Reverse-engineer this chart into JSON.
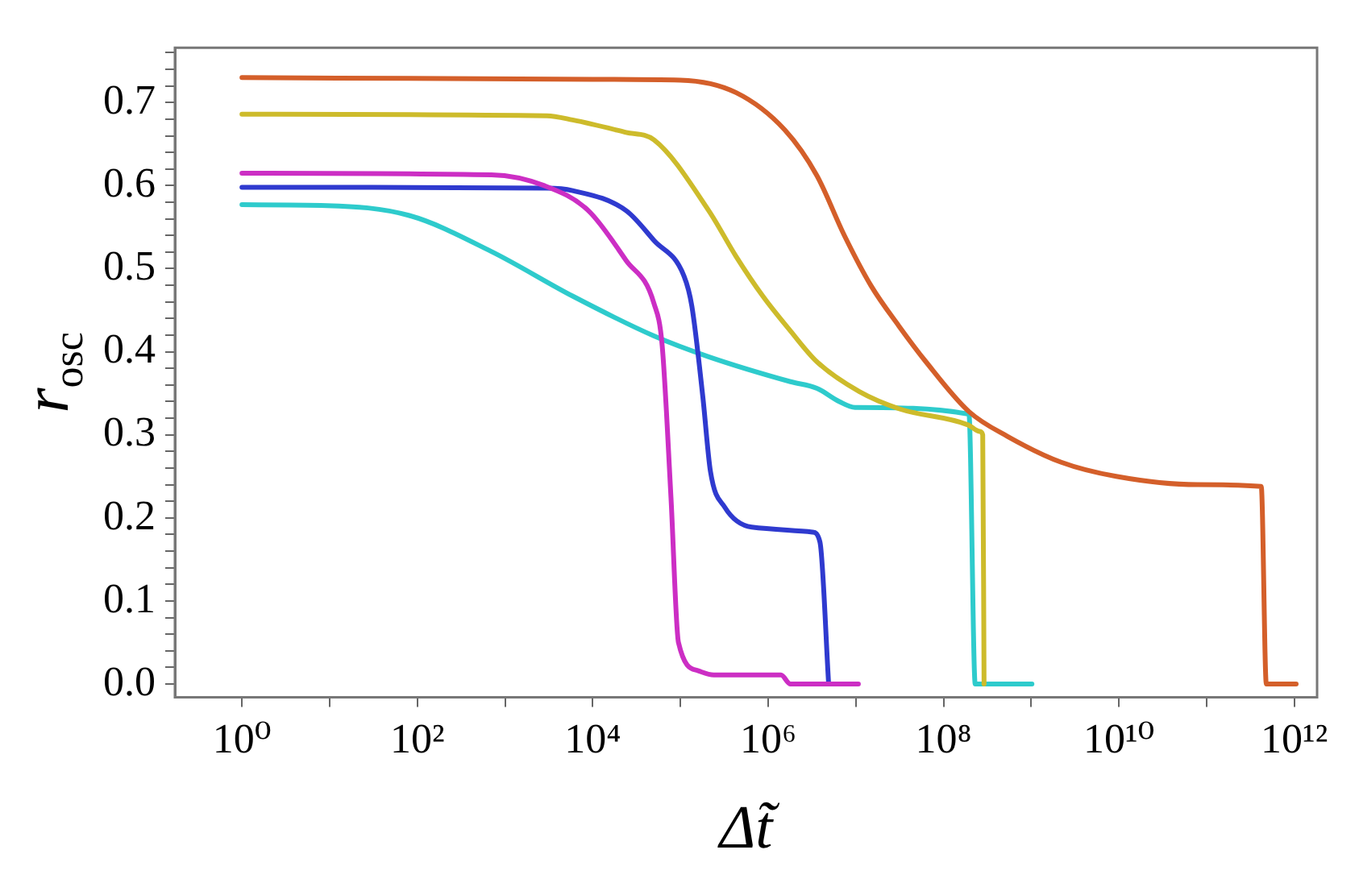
{
  "chart_data": {
    "type": "line",
    "xlabel": "Δt̃",
    "ylabel": "r$_{osc}$",
    "log": "x",
    "grid": false,
    "legend": false,
    "marker": "none",
    "line_style": "solid",
    "xlim": [
      0.172,
      1820000000000.0
    ],
    "ylim": [
      -0.016,
      0.766
    ],
    "xticks": [
      {
        "value": 1,
        "label": "10⁰"
      },
      {
        "value": 10,
        "label": null
      },
      {
        "value": 100,
        "label": "10²"
      },
      {
        "value": 1000,
        "label": null
      },
      {
        "value": 10000,
        "label": "10⁴"
      },
      {
        "value": 100000,
        "label": null
      },
      {
        "value": 1000000,
        "label": "10⁶"
      },
      {
        "value": 10000000,
        "label": null
      },
      {
        "value": 100000000,
        "label": "10⁸"
      },
      {
        "value": 1000000000,
        "label": null
      },
      {
        "value": 10000000000,
        "label": "10¹⁰"
      },
      {
        "value": 100000000000,
        "label": null
      },
      {
        "value": 1000000000000,
        "label": "10¹²"
      }
    ],
    "yticks": [
      {
        "value": 0,
        "label": "0.0"
      },
      {
        "value": 0.02,
        "label": null
      },
      {
        "value": 0.04,
        "label": null
      },
      {
        "value": 0.06,
        "label": null
      },
      {
        "value": 0.08,
        "label": null
      },
      0.1,
      {
        "value": 0.12,
        "label": null
      },
      {
        "value": 0.14,
        "label": null
      },
      {
        "value": 0.16,
        "label": null
      },
      {
        "value": 0.18,
        "label": null
      },
      0.2,
      {
        "value": 0.22,
        "label": null
      },
      {
        "value": 0.24,
        "label": null
      },
      {
        "value": 0.26,
        "label": null
      },
      {
        "value": 0.28,
        "label": null
      },
      0.3,
      {
        "value": 0.32,
        "label": null
      },
      {
        "value": 0.34,
        "label": null
      },
      {
        "value": 0.36,
        "label": null
      },
      {
        "value": 0.38,
        "label": null
      },
      0.4,
      {
        "value": 0.42,
        "label": null
      },
      {
        "value": 0.44,
        "label": null
      },
      {
        "value": 0.46,
        "label": null
      },
      {
        "value": 0.48,
        "label": null
      },
      0.5,
      {
        "value": 0.52,
        "label": null
      },
      {
        "value": 0.54,
        "label": null
      },
      {
        "value": 0.56,
        "label": null
      },
      {
        "value": 0.58,
        "label": null
      },
      0.6,
      {
        "value": 0.62,
        "label": null
      },
      {
        "value": 0.64,
        "label": null
      },
      {
        "value": 0.66,
        "label": null
      },
      {
        "value": 0.68,
        "label": null
      },
      0.7,
      {
        "value": 0.72,
        "label": null
      },
      {
        "value": 0.74,
        "label": null
      },
      {
        "value": 0.76,
        "label": null
      }
    ],
    "series": [
      {
        "color": "#d45f2a",
        "x": [
          1,
          10000.0,
          100000.0,
          430000.0,
          1550000.0,
          3600000.0,
          7400000.0,
          15000000.0,
          31000000.0,
          63000000.0,
          195000000.0,
          540000000.0,
          2200000000.0,
          9300000000.0,
          79000000000.0,
          420000000000.0,
          480000000000.0,
          1050000000000.0
        ],
        "values": [
          0.73,
          0.728,
          0.727,
          0.712,
          0.667,
          0.612,
          0.54,
          0.479,
          0.431,
          0.388,
          0.328,
          0.298,
          0.267,
          0.25,
          0.24,
          0.238,
          0,
          0
        ]
      },
      {
        "color": "#cdbb2b",
        "x": [
          1,
          3000,
          5900.0,
          24000.0,
          50000.0,
          210000.0,
          430000.0,
          870000.0,
          1800000.0,
          3600000.0,
          11000000.0,
          32000000.0,
          190000000.0,
          260000000.0,
          280000000.0,
          290000000.0
        ],
        "values": [
          0.686,
          0.684,
          0.679,
          0.664,
          0.655,
          0.57,
          0.515,
          0.467,
          0.425,
          0.388,
          0.352,
          0.331,
          0.312,
          0.304,
          0.3,
          0
        ]
      },
      {
        "color": "#cc2ec4",
        "x": [
          1,
          700,
          2800,
          8900,
          24000.0,
          50000.0,
          62000.0,
          78000.0,
          95000.0,
          160000.0,
          240000.0,
          1400000.0,
          1800000.0,
          10700000.0
        ],
        "values": [
          0.615,
          0.613,
          0.6,
          0.57,
          0.51,
          0.458,
          0.407,
          0.225,
          0.05,
          0.016,
          0.011,
          0.011,
          0,
          0
        ]
      },
      {
        "color": "#2f3acf",
        "x": [
          1,
          3000,
          5900.0,
          24000.0,
          50000.0,
          110000.0,
          135000.0,
          180000.0,
          220000.0,
          320000.0,
          650000.0,
          3200000.0,
          3900000.0,
          4900000.0
        ],
        "values": [
          0.598,
          0.597,
          0.594,
          0.57,
          0.534,
          0.491,
          0.455,
          0.346,
          0.256,
          0.213,
          0.189,
          0.183,
          0.171,
          0
        ]
      },
      {
        "color": "#2ecbcc",
        "x": [
          1,
          9.3,
          81,
          690,
          5900.0,
          50000.0,
          210000.0,
          1800000.0,
          3600000.0,
          6500000.0,
          9800000.0,
          195000000.0,
          230000000.0,
          1020000000.0
        ],
        "values": [
          0.577,
          0.576,
          0.564,
          0.521,
          0.467,
          0.419,
          0.394,
          0.364,
          0.356,
          0.34,
          0.333,
          0.325,
          0,
          0
        ]
      }
    ]
  }
}
